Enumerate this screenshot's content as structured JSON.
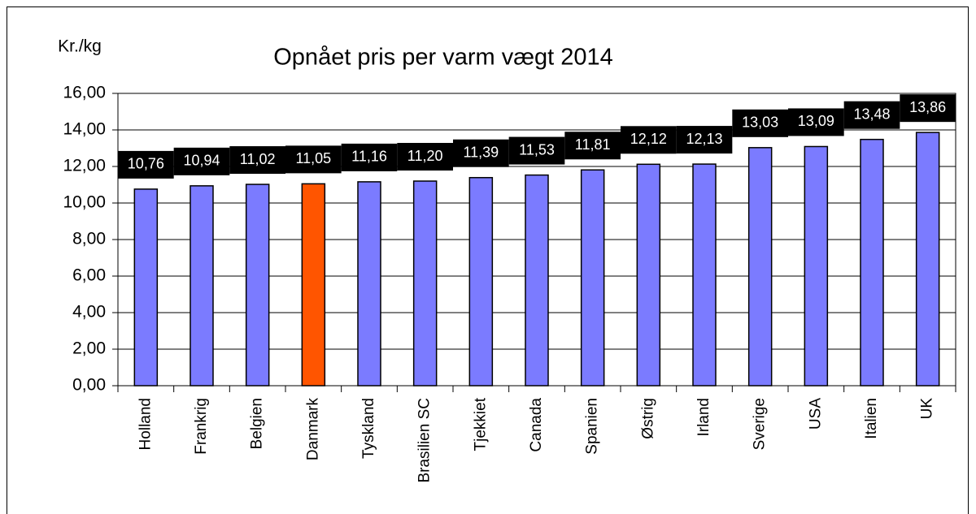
{
  "chart_data": {
    "type": "bar",
    "title": "Opnået pris per varm vægt 2014",
    "y_label": "Kr./kg",
    "categories": [
      "Holland",
      "Frankrig",
      "Belgien",
      "Danmark",
      "Tyskland",
      "Brasilien SC",
      "Tjekkiet",
      "Canada",
      "Spanien",
      "Østrig",
      "Irland",
      "Sverige",
      "USA",
      "Italien",
      "UK"
    ],
    "values": [
      10.76,
      10.94,
      11.02,
      11.05,
      11.16,
      11.2,
      11.39,
      11.53,
      11.81,
      12.12,
      12.13,
      13.03,
      13.09,
      13.48,
      13.86
    ],
    "value_labels": [
      "10,76",
      "10,94",
      "11,02",
      "11,05",
      "11,16",
      "11,20",
      "11,39",
      "11,53",
      "11,81",
      "12,12",
      "12,13",
      "13,03",
      "13,09",
      "13,48",
      "13,86"
    ],
    "colors": [
      "#7b7bff",
      "#7b7bff",
      "#7b7bff",
      "#ff5500",
      "#7b7bff",
      "#7b7bff",
      "#7b7bff",
      "#7b7bff",
      "#7b7bff",
      "#7b7bff",
      "#7b7bff",
      "#7b7bff",
      "#7b7bff",
      "#7b7bff",
      "#7b7bff"
    ],
    "ylim": [
      0,
      16
    ],
    "yticks": [
      {
        "value": 0,
        "label": "0,00"
      },
      {
        "value": 2,
        "label": "2,00"
      },
      {
        "value": 4,
        "label": "4,00"
      },
      {
        "value": 6,
        "label": "6,00"
      },
      {
        "value": 8,
        "label": "8,00"
      },
      {
        "value": 10,
        "label": "10,00"
      },
      {
        "value": 12,
        "label": "12,00"
      },
      {
        "value": 14,
        "label": "14,00"
      },
      {
        "value": 16,
        "label": "16,00"
      }
    ],
    "grid": true
  }
}
